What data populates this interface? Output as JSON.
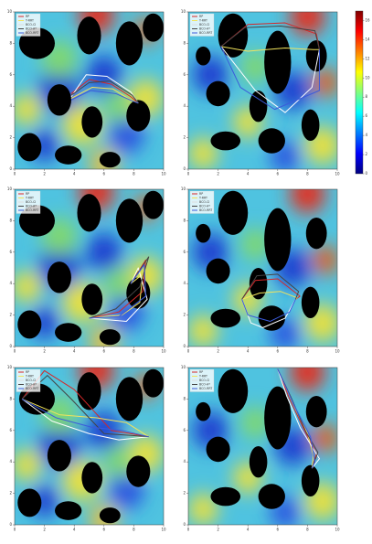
{
  "chart_data": [
    {
      "type": "line",
      "legend": "upper left",
      "xlim": [
        0,
        10
      ],
      "ylim": [
        0,
        10
      ],
      "xticks": [
        0,
        2,
        4,
        6,
        8,
        10
      ],
      "yticks": [
        0,
        2,
        4,
        6,
        8,
        10
      ],
      "series": [
        {
          "name": "RP",
          "color": "#d62728",
          "x": [
            3.8,
            5,
            6.5,
            7.8,
            8.3
          ],
          "y": [
            4.8,
            5.7,
            5.4,
            4.6,
            4.2
          ]
        },
        {
          "name": "T-RRT",
          "color": "#f2e45c",
          "x": [
            3.8,
            5.2,
            6.6,
            7.6,
            8.3
          ],
          "y": [
            4.5,
            5.2,
            5.1,
            4.5,
            4.2
          ]
        },
        {
          "name": "BCO-CI",
          "color": "#ffffff",
          "x": [
            3.8,
            4.8,
            6.2,
            7.8,
            8.3
          ],
          "y": [
            4.6,
            6.0,
            5.9,
            4.9,
            4.2
          ]
        },
        {
          "name": "BCO-A*",
          "color": "#444444",
          "x": [
            3.8,
            5,
            6.4,
            7.9,
            8.3
          ],
          "y": [
            4.7,
            5.5,
            5.6,
            4.7,
            4.2
          ]
        },
        {
          "name": "BCO-RRT",
          "color": "#3b5bdb",
          "x": [
            3.8,
            5.1,
            6.8,
            8,
            8.3
          ],
          "y": [
            4.4,
            5.0,
            4.8,
            4.3,
            4.2
          ]
        }
      ]
    },
    {
      "type": "line",
      "legend": "upper left",
      "xlim": [
        0,
        10
      ],
      "ylim": [
        0,
        10
      ],
      "xticks": [
        0,
        2,
        4,
        6,
        8,
        10
      ],
      "yticks": [
        0,
        2,
        4,
        6,
        8,
        10
      ],
      "series": [
        {
          "name": "RP",
          "color": "#d62728",
          "x": [
            2.2,
            4,
            6.5,
            8.6,
            8.8
          ],
          "y": [
            7.8,
            9.2,
            9.3,
            8.6,
            7.6
          ]
        },
        {
          "name": "T-RRT",
          "color": "#f2e45c",
          "x": [
            2.2,
            4,
            6.5,
            8.4,
            8.8
          ],
          "y": [
            7.8,
            7.5,
            7.7,
            7.6,
            7.6
          ]
        },
        {
          "name": "BCO-CI",
          "color": "#ffffff",
          "x": [
            2.2,
            4.5,
            6.5,
            8.3,
            8.8
          ],
          "y": [
            7.8,
            5,
            3.6,
            5.2,
            7.6
          ]
        },
        {
          "name": "BCO-A*",
          "color": "#444444",
          "x": [
            2.2,
            3.8,
            6.2,
            8.5,
            8.8
          ],
          "y": [
            7.8,
            9.0,
            9.1,
            8.8,
            7.6
          ]
        },
        {
          "name": "BCO-RRT",
          "color": "#3b5bdb",
          "x": [
            2.2,
            3.5,
            5.8,
            8.8,
            8.8
          ],
          "y": [
            7.8,
            5.2,
            3.8,
            5.0,
            7.6
          ]
        }
      ]
    },
    {
      "type": "line",
      "legend": "upper left",
      "xlim": [
        0,
        10
      ],
      "ylim": [
        0,
        10
      ],
      "xticks": [
        0,
        2,
        4,
        6,
        8,
        10
      ],
      "yticks": [
        0,
        2,
        4,
        6,
        8,
        10
      ],
      "series": [
        {
          "name": "RP",
          "color": "#d62728",
          "x": [
            5,
            7,
            8.6,
            8.8,
            7.8
          ],
          "y": [
            1.8,
            2.2,
            3.5,
            5.5,
            4.0
          ]
        },
        {
          "name": "T-RRT",
          "color": "#f2e45c",
          "x": [
            5,
            7.2,
            8.4,
            8.6,
            7.8
          ],
          "y": [
            1.8,
            2.0,
            2.8,
            4.6,
            4.0
          ]
        },
        {
          "name": "BCO-CI",
          "color": "#ffffff",
          "x": [
            5,
            7.5,
            8.9,
            8.3,
            7.8
          ],
          "y": [
            1.8,
            1.6,
            3.0,
            5.0,
            4.0
          ]
        },
        {
          "name": "BCO-A*",
          "color": "#444444",
          "x": [
            5,
            6.8,
            8.4,
            9.0,
            7.8
          ],
          "y": [
            1.8,
            2.4,
            3.8,
            5.7,
            4.0
          ]
        },
        {
          "name": "BCO-RRT",
          "color": "#3b5bdb",
          "x": [
            5,
            7,
            8.8,
            8.7,
            7.8
          ],
          "y": [
            1.8,
            1.9,
            3.2,
            5.2,
            4.0
          ]
        }
      ]
    },
    {
      "type": "line",
      "legend": "upper left",
      "xlim": [
        0,
        10
      ],
      "ylim": [
        0,
        10
      ],
      "xticks": [
        0,
        2,
        4,
        6,
        8,
        10
      ],
      "yticks": [
        0,
        2,
        4,
        6,
        8,
        10
      ],
      "series": [
        {
          "name": "RP",
          "color": "#d62728",
          "x": [
            3.6,
            4.5,
            6.0,
            7.5,
            7.2
          ],
          "y": [
            3.0,
            4.2,
            4.3,
            3.2,
            3.0
          ]
        },
        {
          "name": "T-RRT",
          "color": "#f2e45c",
          "x": [
            3.6,
            4.8,
            6.2,
            7.3,
            7.2
          ],
          "y": [
            3.0,
            3.4,
            3.5,
            3.1,
            3.0
          ]
        },
        {
          "name": "BCO-CI",
          "color": "#ffffff",
          "x": [
            3.6,
            4.2,
            5.0,
            6.5,
            7.2
          ],
          "y": [
            3.0,
            1.5,
            1.2,
            1.8,
            3.0
          ]
        },
        {
          "name": "BCO-A*",
          "color": "#444444",
          "x": [
            3.6,
            4.6,
            6.0,
            7.4,
            7.2
          ],
          "y": [
            3.0,
            4.5,
            4.6,
            3.5,
            3.0
          ]
        },
        {
          "name": "BCO-RRT",
          "color": "#3b5bdb",
          "x": [
            3.6,
            4.0,
            5.5,
            6.8,
            7.2
          ],
          "y": [
            3.0,
            2.0,
            1.6,
            2.2,
            3.0
          ]
        }
      ]
    },
    {
      "type": "line",
      "legend": "upper left",
      "xlim": [
        0,
        10
      ],
      "ylim": [
        0,
        10
      ],
      "xticks": [
        0,
        2,
        4,
        6,
        8,
        10
      ],
      "yticks": [
        0,
        2,
        4,
        6,
        8,
        10
      ],
      "series": [
        {
          "name": "RP",
          "color": "#d62728",
          "x": [
            0.5,
            2,
            4,
            6.5,
            9.0
          ],
          "y": [
            8.0,
            9.8,
            8.6,
            6.0,
            5.6
          ]
        },
        {
          "name": "T-RRT",
          "color": "#f2e45c",
          "x": [
            0.5,
            3,
            5.5,
            7.5,
            9.0
          ],
          "y": [
            8.0,
            7.0,
            6.8,
            6.5,
            5.6
          ]
        },
        {
          "name": "BCO-CI",
          "color": "#ffffff",
          "x": [
            0.5,
            2.5,
            5.0,
            7.0,
            9.0
          ],
          "y": [
            8.0,
            6.6,
            5.8,
            5.4,
            5.6
          ]
        },
        {
          "name": "BCO-A*",
          "color": "#444444",
          "x": [
            0.5,
            2.2,
            3.8,
            6.0,
            9.0
          ],
          "y": [
            8.0,
            9.5,
            8.0,
            5.8,
            5.6
          ]
        },
        {
          "name": "BCO-RRT",
          "color": "#3b5bdb",
          "x": [
            0.5,
            2.8,
            5.2,
            7.2,
            9.0
          ],
          "y": [
            8.0,
            6.8,
            6.2,
            6.0,
            5.6
          ]
        }
      ]
    },
    {
      "type": "line",
      "legend": "upper left",
      "xlim": [
        0,
        10
      ],
      "ylim": [
        0,
        10
      ],
      "xticks": [
        0,
        2,
        4,
        6,
        8,
        10
      ],
      "yticks": [
        0,
        2,
        4,
        6,
        8,
        10
      ],
      "series": [
        {
          "name": "RP",
          "color": "#d62728",
          "x": [
            6.0,
            6.8,
            7.8,
            8.6,
            8.3
          ],
          "y": [
            9.9,
            8.0,
            6.0,
            4.5,
            3.6
          ]
        },
        {
          "name": "T-RRT",
          "color": "#f2e45c",
          "x": [
            6.0,
            7.0,
            8.0,
            8.4,
            8.3
          ],
          "y": [
            9.9,
            7.8,
            5.8,
            4.4,
            3.6
          ]
        },
        {
          "name": "BCO-CI",
          "color": "#ffffff",
          "x": [
            6.0,
            6.6,
            7.5,
            8.8,
            8.3
          ],
          "y": [
            9.9,
            8.2,
            6.2,
            4.2,
            3.6
          ]
        },
        {
          "name": "BCO-A*",
          "color": "#444444",
          "x": [
            6.0,
            6.9,
            7.9,
            8.7,
            8.3
          ],
          "y": [
            9.9,
            8.1,
            5.9,
            4.6,
            3.6
          ]
        },
        {
          "name": "BCO-RRT",
          "color": "#3b5bdb",
          "x": [
            6.0,
            7.1,
            8.2,
            8.5,
            8.3
          ],
          "y": [
            9.9,
            7.6,
            5.6,
            4.0,
            3.6
          ]
        }
      ]
    }
  ],
  "colorbar": {
    "ylim": [
      0,
      17
    ],
    "yticks": [
      0,
      2,
      4,
      6,
      8,
      10,
      12,
      14,
      16
    ],
    "colors": [
      "#00007f",
      "#0000ff",
      "#007fff",
      "#00ffff",
      "#7fff7f",
      "#ffff00",
      "#ff7f00",
      "#ff0000",
      "#7f0000"
    ]
  }
}
